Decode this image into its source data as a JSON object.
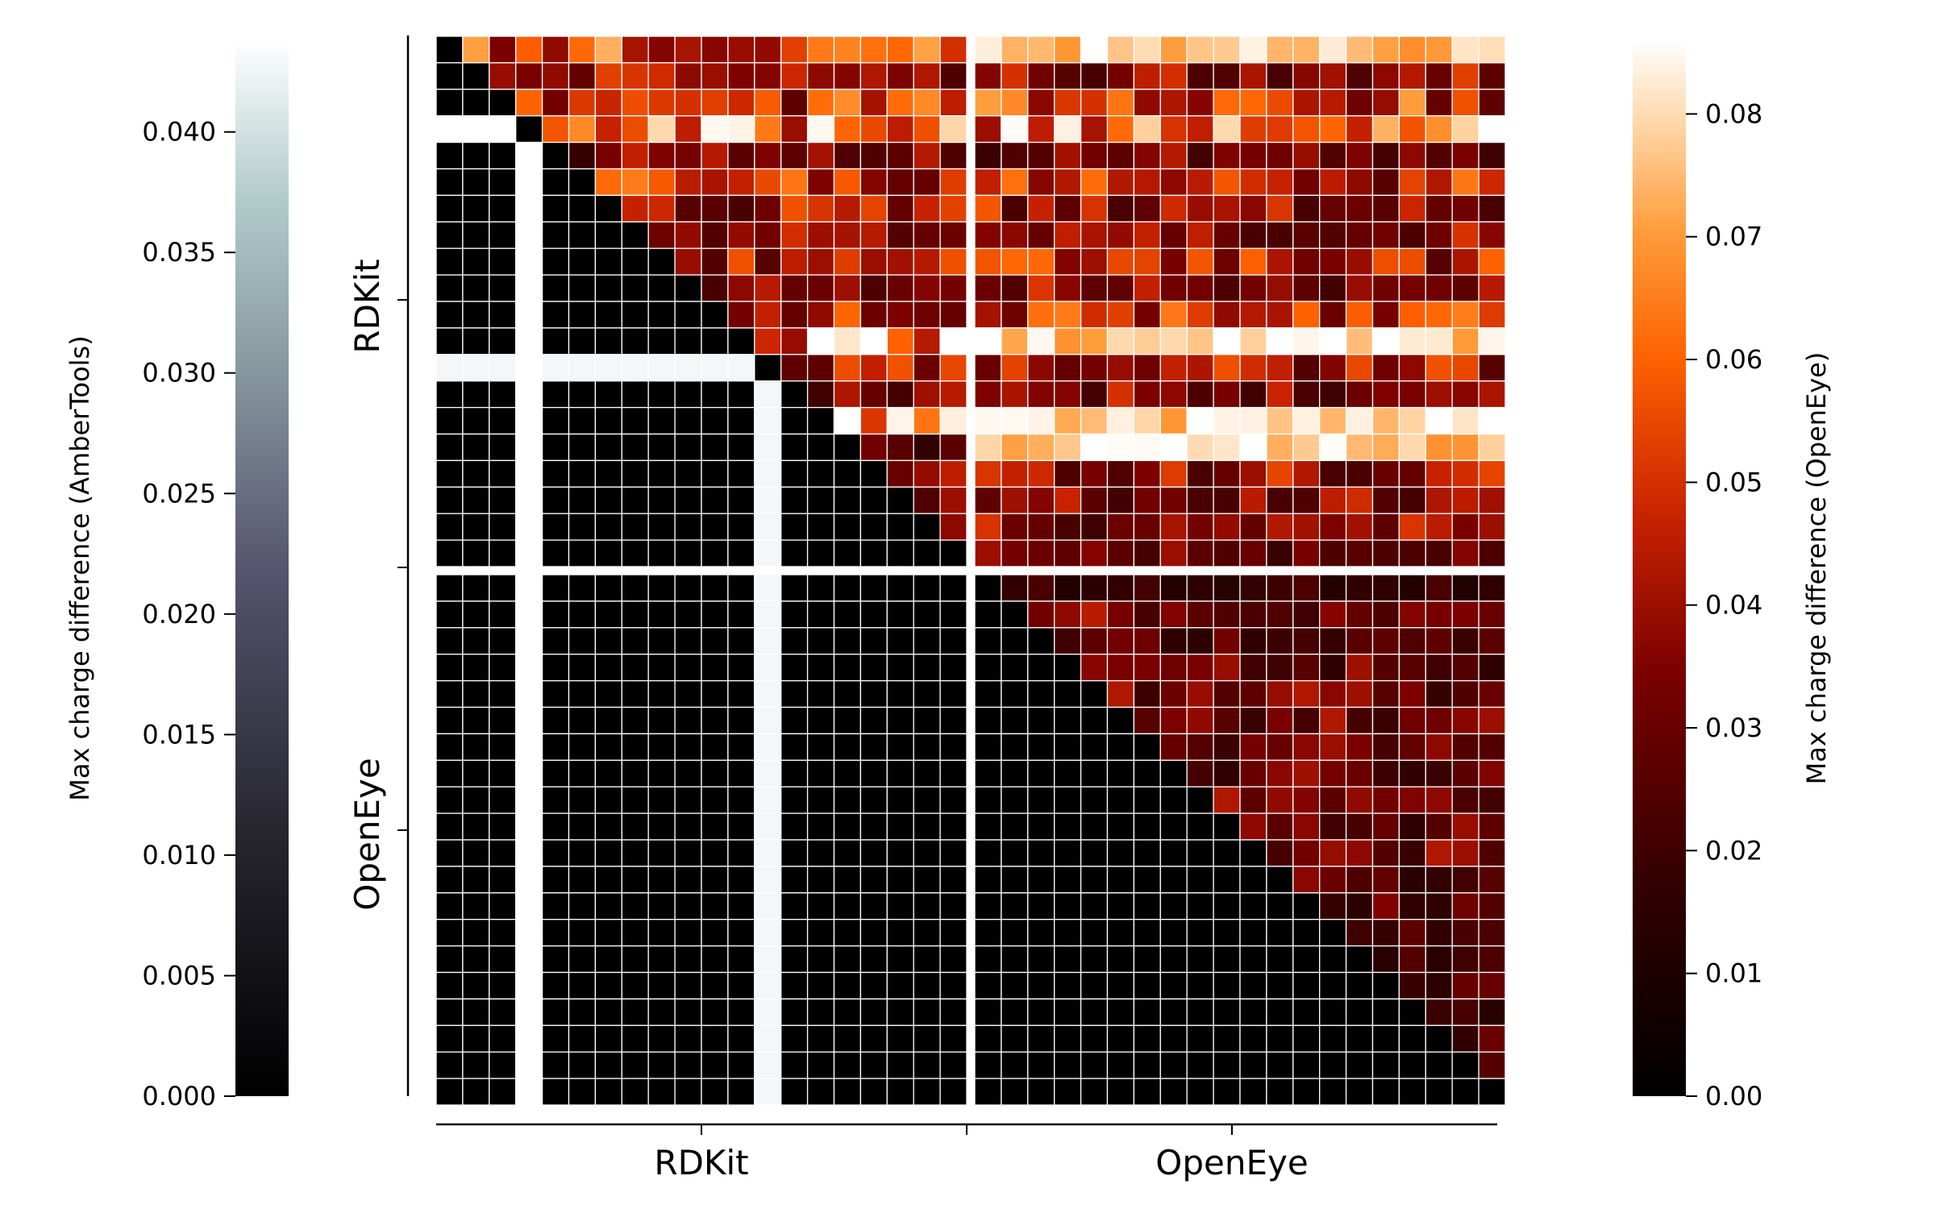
{
  "chart_data": {
    "type": "heatmap",
    "n": 40,
    "rows_groups": [
      {
        "label": "RDKit",
        "size": 20
      },
      {
        "label": "OpenEye",
        "size": 20
      }
    ],
    "cols_groups": [
      {
        "label": "RDKit",
        "size": 20
      },
      {
        "label": "OpenEye",
        "size": 20
      }
    ],
    "row_axis_labels": [
      "RDKit",
      "OpenEye"
    ],
    "col_axis_labels": [
      "RDKit",
      "OpenEye"
    ],
    "missing_index": 3,
    "upper_triangle_metric": "OpenEye",
    "lower_triangle_metric": "AmberTools",
    "left_colorbar": {
      "label": "Max charge difference (AmberTools)",
      "range": [
        0,
        0.0438
      ],
      "ticks": [
        0.0,
        0.005,
        0.01,
        0.015,
        0.02,
        0.025,
        0.03,
        0.035,
        0.04
      ],
      "tick_labels": [
        "0.000",
        "0.005",
        "0.010",
        "0.015",
        "0.020",
        "0.025",
        "0.030",
        "0.035",
        "0.040"
      ],
      "colormap": "bone"
    },
    "right_colorbar": {
      "label": "Max charge difference (OpenEye)",
      "range": [
        0,
        0.086
      ],
      "ticks": [
        0.0,
        0.01,
        0.02,
        0.03,
        0.04,
        0.05,
        0.06,
        0.07,
        0.08
      ],
      "tick_labels": [
        "0.00",
        "0.01",
        "0.02",
        "0.03",
        "0.04",
        "0.05",
        "0.06",
        "0.07",
        "0.08"
      ],
      "colormap": "gist_heat"
    },
    "lower_triangle_values": {
      "default": 0.0,
      "row_12_value": 0.0428,
      "col_12_value": 0.0428,
      "cell_12_3": 0.038
    },
    "upper_triangle_row_levels": [
      0.055,
      0.04,
      0.05,
      0.062,
      0.032,
      0.045,
      0.04,
      0.038,
      0.044,
      0.036,
      0.045,
      0.07,
      0.04,
      0.035,
      0.07,
      0.03,
      0.038,
      0.036,
      0.036,
      0.034,
      0.018,
      0.032,
      0.024,
      0.028,
      0.03,
      0.032,
      0.028,
      0.028,
      0.03,
      0.028,
      0.03,
      0.026,
      0.026,
      0.024,
      0.022,
      0.026,
      0.024,
      0.022,
      0.018,
      0.0
    ],
    "gridlines": true,
    "legend": "none"
  }
}
